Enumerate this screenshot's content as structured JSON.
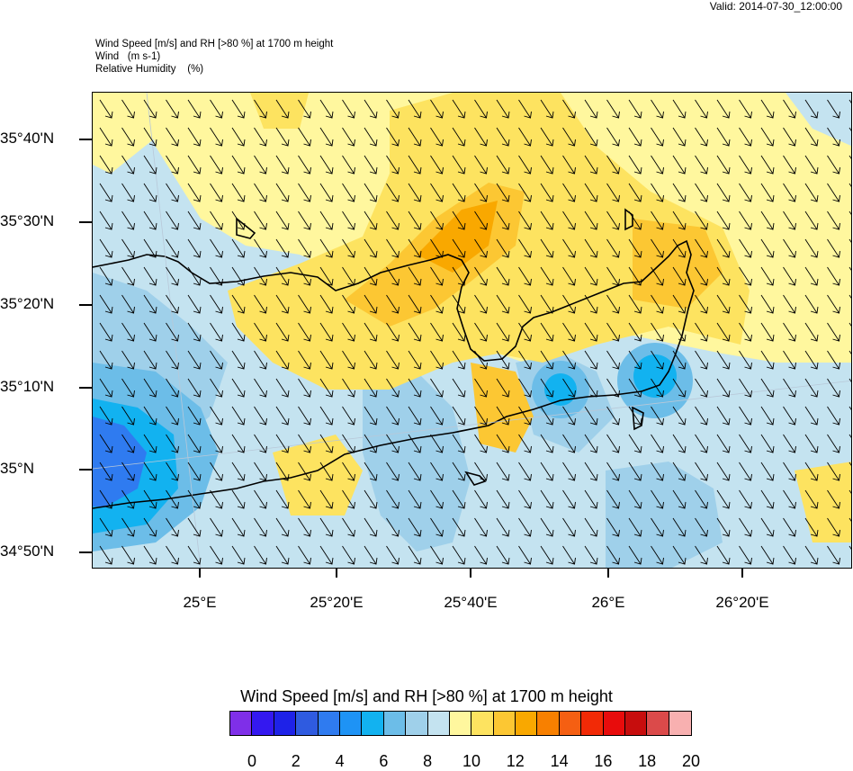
{
  "valid_time": "Valid: 2014-07-30_12:00:00",
  "titles": {
    "line1": "Wind Speed [m/s] and RH [>80 %] at 1700 m height",
    "line2": "Wind   (m s-1)",
    "line3": "Relative Humidity    (%)"
  },
  "axes": {
    "lat_labels": [
      "35°40'N",
      "35°30'N",
      "35°20'N",
      "35°10'N",
      "35°N",
      "34°50'N"
    ],
    "lon_labels": [
      "25°E",
      "25°20'E",
      "25°40'E",
      "26°E",
      "26°20'E"
    ]
  },
  "wind": {
    "direction": "north-northwest to south-southeast",
    "arrow_icon": "wind-vector-arrow-icon"
  },
  "colorbar": {
    "title": "Wind Speed [m/s] and RH [>80 %] at 1700 m height",
    "labels": [
      "0",
      "2",
      "4",
      "6",
      "8",
      "10",
      "12",
      "14",
      "16",
      "18",
      "20"
    ],
    "colors": [
      "#7f2fe8",
      "#3418f0",
      "#1e22e8",
      "#2f5be0",
      "#2f7bf0",
      "#1e93f5",
      "#12b2f0",
      "#6cbde8",
      "#9fd0ea",
      "#c4e3f0",
      "#fff79e",
      "#fde360",
      "#fcc733",
      "#f9a800",
      "#f88000",
      "#f55f12",
      "#f22a06",
      "#e80c0c",
      "#c70d0d",
      "#db4a4a",
      "#f8b0b0"
    ]
  }
}
